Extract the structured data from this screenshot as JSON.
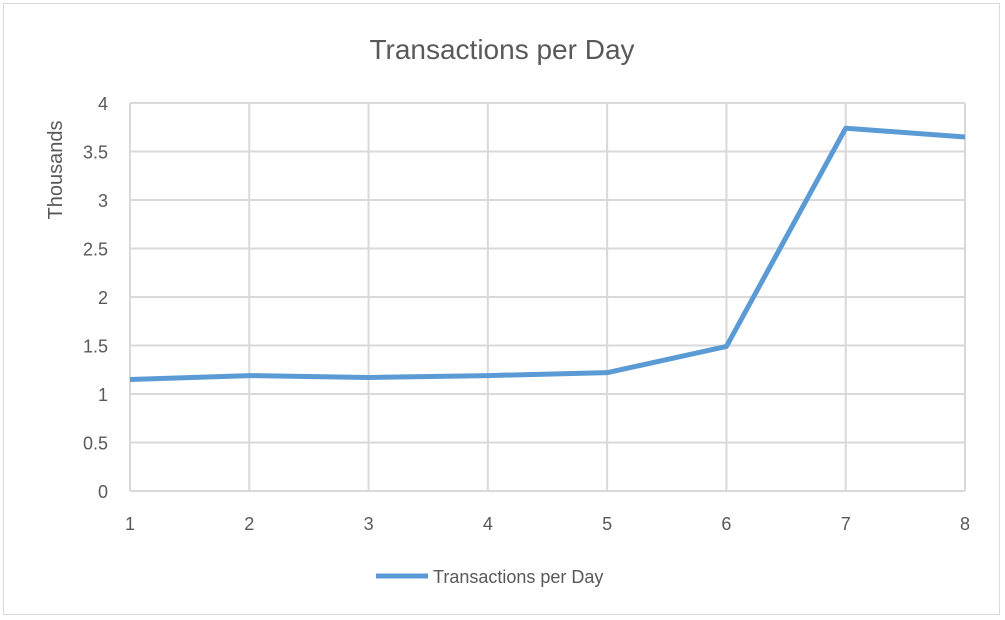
{
  "chart_data": {
    "type": "line",
    "title": "Transactions per Day",
    "xlabel": "",
    "ylabel": "Thousands",
    "x": [
      1,
      2,
      3,
      4,
      5,
      6,
      7,
      8
    ],
    "series": [
      {
        "name": "Transactions per Day",
        "values": [
          1.15,
          1.19,
          1.17,
          1.19,
          1.22,
          1.49,
          3.74,
          3.65
        ],
        "color": "#5b9bd5"
      }
    ],
    "xlim": [
      1,
      8
    ],
    "ylim": [
      0,
      4
    ],
    "yticks": [
      "0",
      "0.5",
      "1",
      "1.5",
      "2",
      "2.5",
      "3",
      "3.5",
      "4"
    ],
    "xticks": [
      "1",
      "2",
      "3",
      "4",
      "5",
      "6",
      "7",
      "8"
    ],
    "grid": true,
    "legend_position": "bottom",
    "gridline_color": "#d9d9d9"
  }
}
